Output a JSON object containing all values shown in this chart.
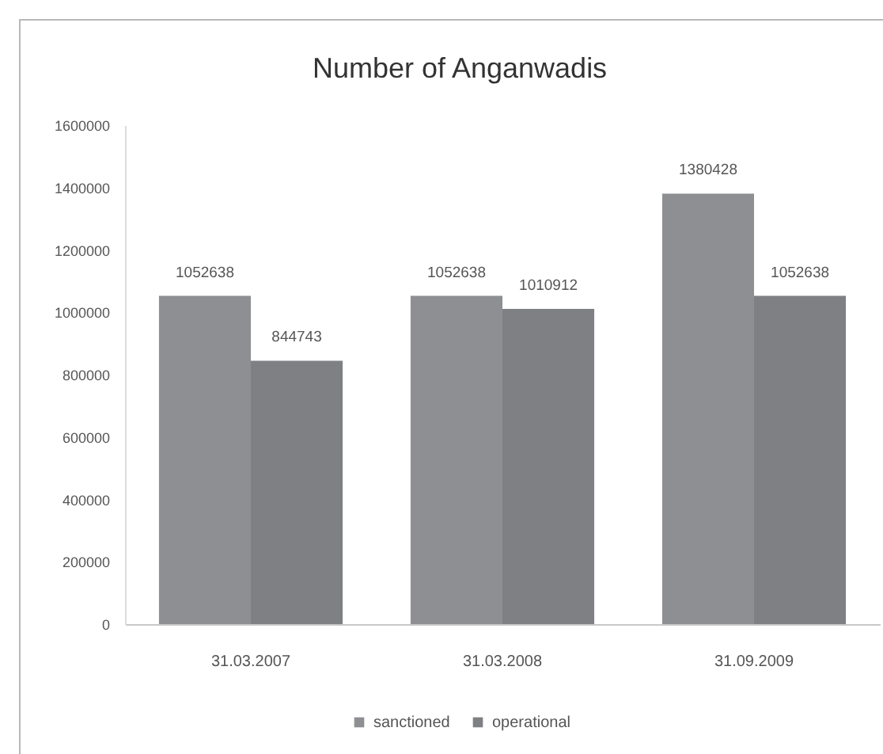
{
  "chart_data": {
    "type": "bar",
    "title": "Number of Anganwadis",
    "categories": [
      "31.03.2007",
      "31.03.2008",
      "31.09.2009"
    ],
    "series": [
      {
        "name": "sanctioned",
        "color": "#8e8f93",
        "values": [
          1052638,
          1052638,
          1380428
        ]
      },
      {
        "name": "operational",
        "color": "#7f8084",
        "values": [
          844743,
          1010912,
          1052638
        ]
      }
    ],
    "ylim": [
      0,
      1600000
    ],
    "yticks": [
      0,
      200000,
      400000,
      600000,
      800000,
      1000000,
      1200000,
      1400000,
      1600000
    ],
    "data_labels": true,
    "legend": "bottom",
    "grid": false
  }
}
